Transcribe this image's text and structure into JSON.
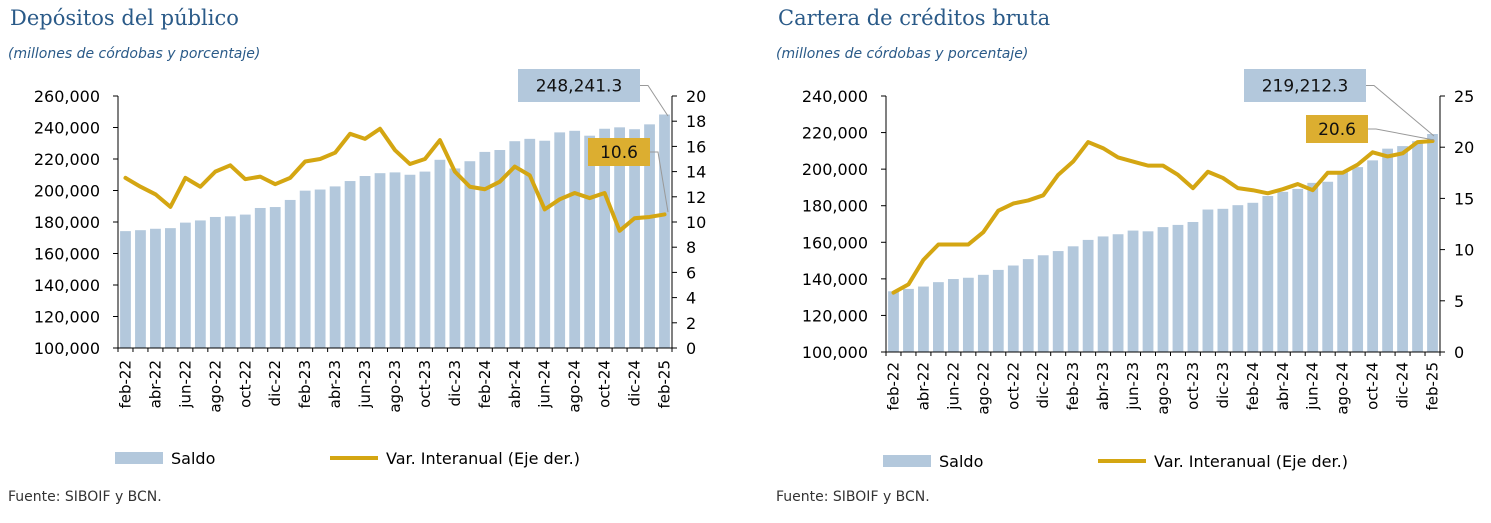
{
  "chart_data": [
    {
      "type": "bar+line",
      "title": "Depósitos del público",
      "subtitle": "(millones de córdobas y porcentaje)",
      "source": "Fuente: SIBOIF y BCN.",
      "colors": {
        "bar": "#b3c8dc",
        "line": "#d4a612",
        "title": "#2a5a88",
        "callout_bar": "#b3c8dc",
        "callout_line": "#dcae30"
      },
      "x_tick_labels": [
        "feb-22",
        "abr-22",
        "jun-22",
        "ago-22",
        "oct-22",
        "dic-22",
        "feb-23",
        "abr-23",
        "jun-23",
        "ago-23",
        "oct-23",
        "dic-23",
        "feb-24",
        "abr-24",
        "jun-24",
        "ago-24",
        "oct-24",
        "dic-24",
        "feb-25"
      ],
      "ylim_left": [
        100000,
        260000
      ],
      "yticks_left": [
        "100,000",
        "120,000",
        "140,000",
        "160,000",
        "180,000",
        "200,000",
        "220,000",
        "240,000",
        "260,000"
      ],
      "ylim_right": [
        0,
        20
      ],
      "yticks_right": [
        "0",
        "2",
        "4",
        "6",
        "8",
        "10",
        "12",
        "14",
        "16",
        "18",
        "20"
      ],
      "series": [
        {
          "name": "Saldo",
          "axis": "left",
          "kind": "bar",
          "values": [
            174200,
            174800,
            175700,
            176100,
            179600,
            181000,
            183200,
            183600,
            184700,
            188900,
            189500,
            194000,
            199900,
            200600,
            202600,
            206000,
            209200,
            211000,
            211500,
            210000,
            212000,
            219500,
            214000,
            218600,
            224500,
            225700,
            231300,
            232800,
            231600,
            236900,
            237900,
            234800,
            239200,
            240100,
            238900,
            242000,
            248241.3
          ]
        },
        {
          "name": "Var. Interanual (Eje der.)",
          "axis": "right",
          "kind": "line",
          "values": [
            13.5,
            12.8,
            12.2,
            11.2,
            13.5,
            12.8,
            14.0,
            14.5,
            13.4,
            13.6,
            13.0,
            13.5,
            14.8,
            15.0,
            15.5,
            17.0,
            16.6,
            17.4,
            15.7,
            14.6,
            15.0,
            16.5,
            14.0,
            12.8,
            12.6,
            13.2,
            14.4,
            13.7,
            11.0,
            11.8,
            12.3,
            11.9,
            12.3,
            9.3,
            10.3,
            10.4,
            10.6
          ]
        }
      ],
      "callouts": [
        {
          "text": "248,241.3",
          "series": "Saldo"
        },
        {
          "text": "10.6",
          "series": "Var. Interanual (Eje der.)"
        }
      ],
      "legend": {
        "position": "bottom",
        "items": [
          "Saldo",
          "Var. Interanual (Eje der.)"
        ]
      }
    },
    {
      "type": "bar+line",
      "title": "Cartera de créditos bruta",
      "subtitle": "(millones de córdobas y porcentaje)",
      "source": "Fuente: SIBOIF y BCN.",
      "colors": {
        "bar": "#b3c8dc",
        "line": "#d4a612",
        "title": "#2a5a88",
        "callout_bar": "#b3c8dc",
        "callout_line": "#dcae30"
      },
      "x_tick_labels": [
        "feb-22",
        "abr-22",
        "jun-22",
        "ago-22",
        "oct-22",
        "dic-22",
        "feb-23",
        "abr-23",
        "jun-23",
        "ago-23",
        "oct-23",
        "dic-23",
        "feb-24",
        "abr-24",
        "jun-24",
        "ago-24",
        "oct-24",
        "dic-24",
        "feb-25"
      ],
      "ylim_left": [
        100000,
        240000
      ],
      "yticks_left": [
        "100,000",
        "120,000",
        "140,000",
        "160,000",
        "180,000",
        "200,000",
        "220,000",
        "240,000"
      ],
      "ylim_right": [
        0,
        25
      ],
      "yticks_right": [
        "0",
        "5",
        "10",
        "15",
        "20",
        "25"
      ],
      "series": [
        {
          "name": "Saldo",
          "axis": "left",
          "kind": "bar",
          "values": [
            133200,
            134500,
            135800,
            138200,
            139900,
            140600,
            142200,
            144900,
            147300,
            150800,
            152900,
            155200,
            157800,
            161300,
            163200,
            164400,
            166400,
            166000,
            168300,
            169500,
            171100,
            177900,
            178300,
            180300,
            181600,
            185300,
            187600,
            189200,
            192500,
            193100,
            198300,
            201100,
            204800,
            211200,
            212600,
            215300,
            219212.3
          ]
        },
        {
          "name": "Var. Interanual (Eje der.)",
          "axis": "right",
          "kind": "line",
          "values": [
            5.8,
            6.6,
            9.0,
            10.5,
            10.5,
            10.5,
            11.7,
            13.8,
            14.5,
            14.8,
            15.3,
            17.3,
            18.6,
            20.5,
            19.9,
            19.0,
            18.6,
            18.2,
            18.2,
            17.3,
            16.0,
            17.6,
            17.0,
            16.0,
            15.8,
            15.5,
            15.9,
            16.4,
            15.8,
            17.5,
            17.5,
            18.3,
            19.5,
            19.1,
            19.4,
            20.5,
            20.6
          ]
        }
      ],
      "callouts": [
        {
          "text": "219,212.3",
          "series": "Saldo"
        },
        {
          "text": "20.6",
          "series": "Var. Interanual (Eje der.)"
        }
      ],
      "legend": {
        "position": "bottom",
        "items": [
          "Saldo",
          "Var. Interanual (Eje der.)"
        ]
      }
    }
  ]
}
